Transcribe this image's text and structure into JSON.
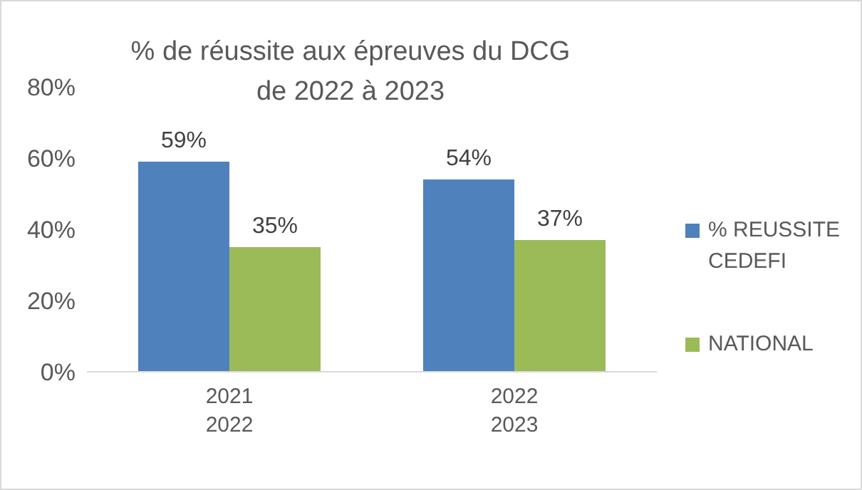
{
  "chart_data": {
    "type": "bar",
    "title": "% de réussite aux épreuves du DCG\nde 2022 à 2023",
    "categories": [
      "2021\n2022",
      "2022\n2023"
    ],
    "series": [
      {
        "name": "% REUSSITE CEDEFI",
        "color": "#4f81bd",
        "values": [
          59,
          54
        ],
        "value_labels": [
          "59%",
          "54%"
        ]
      },
      {
        "name": "NATIONAL",
        "color": "#9bbb59",
        "values": [
          35,
          37
        ],
        "value_labels": [
          "35%",
          "37%"
        ]
      }
    ],
    "ylim": [
      0,
      80
    ],
    "yticks": [
      {
        "value": 0,
        "label": "0%"
      },
      {
        "value": 20,
        "label": "20%"
      },
      {
        "value": 40,
        "label": "40%"
      },
      {
        "value": 60,
        "label": "60%"
      },
      {
        "value": 80,
        "label": "80%"
      }
    ],
    "grid": false,
    "legend": "right"
  }
}
